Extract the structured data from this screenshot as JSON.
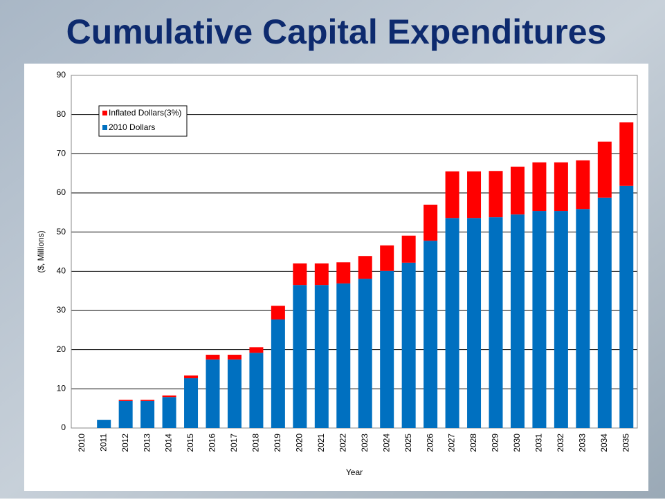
{
  "chart_data": {
    "type": "bar",
    "stacked": true,
    "title": "Cumulative Capital Expenditures",
    "x_label": "Year",
    "y_label": "($, Millions)",
    "categories": [
      "2010",
      "2011",
      "2012",
      "2013",
      "2014",
      "2015",
      "2016",
      "2017",
      "2018",
      "2019",
      "2020",
      "2021",
      "2022",
      "2023",
      "2024",
      "2025",
      "2026",
      "2027",
      "2028",
      "2029",
      "2030",
      "2031",
      "2032",
      "2033",
      "2034",
      "2035"
    ],
    "series": [
      {
        "name": "2010 Dollars",
        "color": "#0070c0",
        "values": [
          0,
          2.1,
          6.9,
          6.9,
          7.9,
          12.7,
          17.5,
          17.5,
          19.2,
          27.7,
          36.5,
          36.5,
          36.9,
          38.1,
          40.1,
          42.2,
          47.8,
          53.6,
          53.6,
          53.8,
          54.5,
          55.4,
          55.4,
          55.9,
          58.8,
          61.8
        ]
      },
      {
        "name": "Inflated Dollars(3%)",
        "color": "#ff0000",
        "values": [
          0,
          0,
          0.3,
          0.3,
          0.4,
          0.7,
          1.2,
          1.2,
          1.4,
          3.5,
          5.5,
          5.5,
          5.4,
          5.8,
          6.5,
          6.9,
          9.2,
          11.9,
          11.9,
          11.8,
          12.2,
          12.4,
          12.4,
          12.4,
          14.3,
          16.2
        ]
      }
    ],
    "ylim": [
      0,
      90
    ],
    "yticks": [
      0,
      10,
      20,
      30,
      40,
      50,
      60,
      70,
      80,
      90
    ],
    "grid": true,
    "legend": "upper left"
  }
}
